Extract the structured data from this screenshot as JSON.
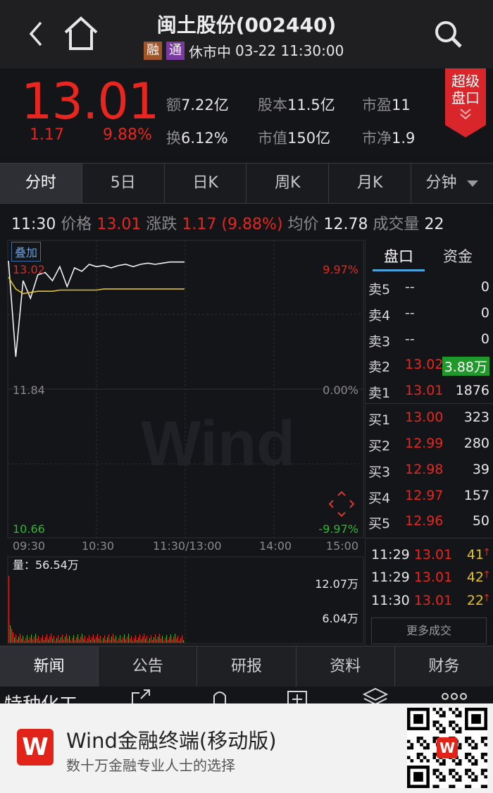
{
  "header": {
    "title": "闽土股份(002440)",
    "tag_rong": "融",
    "tag_tong": "通",
    "status": "休市中",
    "datetime": "03-22 11:30:00",
    "colors": {
      "tag_rong": "#a0562a",
      "tag_tong": "#7a3aa0"
    }
  },
  "quote": {
    "price": "13.01",
    "change": "1.17",
    "change_pct": "9.88%",
    "amount_label": "额",
    "amount": "7.22亿",
    "turnover_label": "换",
    "turnover": "6.12%",
    "share_cap_label": "股本",
    "share_cap": "11.5亿",
    "mktcap_label": "市值",
    "mktcap": "150亿",
    "pe_label": "市盈",
    "pe": "11",
    "pb_label": "市净",
    "pb": "1.9",
    "super_line1": "超级",
    "super_line2": "盘口"
  },
  "period_tabs": [
    "分时",
    "5日",
    "日K",
    "周K",
    "月K",
    "分钟"
  ],
  "info_line": {
    "time": "11:30",
    "price_label": "价格",
    "price": "13.01",
    "chg_label": "涨跌",
    "chg": "1.17 (9.88%)",
    "avg_label": "均价",
    "avg": "12.78",
    "vol_label": "成交量",
    "vol": "22"
  },
  "chart": {
    "overlay_label": "叠加",
    "price_high": "13.02",
    "price_mid": "11.84",
    "price_low": "10.66",
    "pct_high": "9.97%",
    "pct_mid": "0.00%",
    "pct_low": "-9.97%",
    "times": [
      "09:30",
      "10:30",
      "11:30/13:00",
      "14:00",
      "15:00"
    ],
    "volume_label": "量：56.54万",
    "vol_tick_high": "12.07万",
    "vol_tick_mid": "6.04万",
    "watermark": "Wind"
  },
  "chart_data": {
    "type": "line",
    "title": "",
    "x": [
      "09:30",
      "09:35",
      "09:40",
      "09:45",
      "09:50",
      "09:55",
      "10:00",
      "10:05",
      "10:10",
      "10:15",
      "10:20",
      "10:25",
      "10:30",
      "10:35",
      "10:40",
      "10:45",
      "10:50",
      "10:55",
      "11:00",
      "11:05",
      "11:10",
      "11:15",
      "11:20",
      "11:25",
      "11:30"
    ],
    "series": [
      {
        "values": [
          13.02,
          12.2,
          12.85,
          12.7,
          12.9,
          12.92,
          12.85,
          12.97,
          12.8,
          12.96,
          12.93,
          12.99,
          12.97,
          12.98,
          12.96,
          12.98,
          12.99,
          12.97,
          12.99,
          13.0,
          12.99,
          13.0,
          13.01,
          13.01,
          13.01
        ]
      },
      {
        "values": [
          12.88,
          12.78,
          12.74,
          12.75,
          12.76,
          12.76,
          12.76,
          12.77,
          12.77,
          12.77,
          12.77,
          12.77,
          12.77,
          12.78,
          12.78,
          12.78,
          12.78,
          12.78,
          12.78,
          12.78,
          12.78,
          12.78,
          12.78,
          12.78,
          12.78
        ]
      }
    ],
    "ylim": [
      10.66,
      13.02
    ],
    "grid": true
  },
  "book": {
    "tab_pankou": "盘口",
    "tab_zijin": "资金",
    "asks": [
      {
        "name": "卖5",
        "price": "--",
        "vol": "0"
      },
      {
        "name": "卖4",
        "price": "--",
        "vol": "0"
      },
      {
        "name": "卖3",
        "price": "--",
        "vol": "0"
      },
      {
        "name": "卖2",
        "price": "13.02",
        "vol": "3.88万"
      },
      {
        "name": "卖1",
        "price": "13.01",
        "vol": "1876"
      }
    ],
    "bids": [
      {
        "name": "买1",
        "price": "13.00",
        "vol": "323"
      },
      {
        "name": "买2",
        "price": "12.99",
        "vol": "280"
      },
      {
        "name": "买3",
        "price": "12.98",
        "vol": "39"
      },
      {
        "name": "买4",
        "price": "12.97",
        "vol": "157"
      },
      {
        "name": "买5",
        "price": "12.96",
        "vol": "50"
      }
    ],
    "trades": [
      {
        "time": "11:29",
        "price": "13.01",
        "vol": "41"
      },
      {
        "time": "11:29",
        "price": "13.01",
        "vol": "42"
      },
      {
        "time": "11:30",
        "price": "13.01",
        "vol": "22"
      }
    ],
    "more_label": "更多成交"
  },
  "bottom_tabs": [
    "新闻",
    "公告",
    "研报",
    "资料",
    "财务"
  ],
  "partial_row": {
    "label": "特种化工"
  },
  "ad": {
    "logo_letter": "W",
    "title": "Wind金融终端(移动版)",
    "subtitle": "数十万金融专业人士的选择"
  },
  "colors": {
    "up": "#e8251e",
    "down": "#2eb82e",
    "avg_line": "#e6c229",
    "price_line": "#f2f2f2"
  }
}
